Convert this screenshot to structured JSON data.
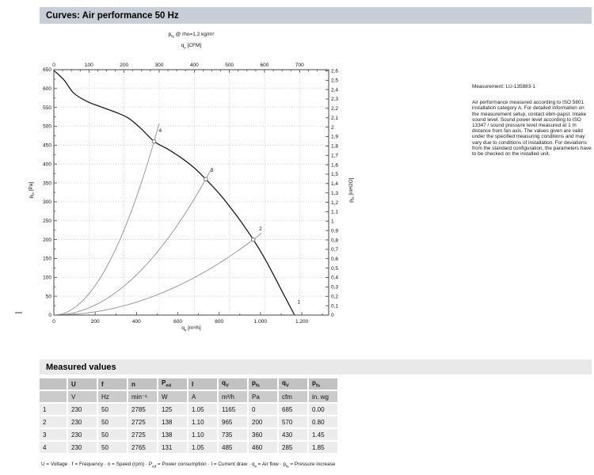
{
  "header": {
    "title": "Curves: Air performance 50 Hz"
  },
  "measured_section": {
    "title": "Measured values"
  },
  "chart_labels": {
    "title": [
      {
        "t": "p"
      },
      {
        "s": "fs"
      },
      {
        "t": " @ rho=1,2 kg/m³"
      }
    ],
    "x_top": [
      {
        "t": "q"
      },
      {
        "s": "v"
      },
      {
        "t": " [CFM]"
      }
    ],
    "x_bottom": [
      {
        "t": "q"
      },
      {
        "s": "v"
      },
      {
        "t": " [m³/h]"
      }
    ],
    "y_left": [
      {
        "t": "p"
      },
      {
        "s": "fs"
      },
      {
        "t": " [Pa]"
      }
    ],
    "y_right": [
      {
        "t": "p"
      },
      {
        "s": "fs"
      },
      {
        "t": " [inH2O]"
      }
    ]
  },
  "chart_data": {
    "type": "line",
    "title": "pfs @ rho=1,2 kg/m3",
    "x_bottom": {
      "label": "qv [m3/h]",
      "range": [
        0,
        1330
      ],
      "majors": [
        0,
        200,
        400,
        600,
        800,
        1000,
        1200
      ],
      "labels": [
        "0",
        "200",
        "400",
        "600",
        "800",
        "1.000",
        "1.200"
      ],
      "minor_step": 100
    },
    "x_top": {
      "label": "qv [CFM]",
      "m3h_per_unit": 1.699,
      "max": 780,
      "majors": [
        0,
        100,
        200,
        300,
        400,
        500,
        600,
        700
      ],
      "labels": [
        "0",
        "100",
        "200",
        "300",
        "400",
        "500",
        "600",
        "700"
      ],
      "minor_step": 25
    },
    "y_left": {
      "label": "pfs [Pa]",
      "range": [
        0,
        650
      ],
      "major_step": 50,
      "minor_step": 25,
      "labels": [
        "0",
        "50",
        "100",
        "150",
        "200",
        "250",
        "300",
        "350",
        "400",
        "450",
        "500",
        "550",
        "600",
        "650"
      ]
    },
    "y_right": {
      "label": "pfs [inH2O]",
      "pa_per_unit": 248.84,
      "tick_step": 0.1,
      "labels": [
        "0",
        "0,1",
        "0,2",
        "0,3",
        "0,4",
        "0,5",
        "0,6",
        "0,7",
        "0,8",
        "0,9",
        "1",
        "1,1",
        "1,2",
        "1,3",
        "1,4",
        "1,5",
        "1,6",
        "1,7",
        "1,8",
        "1,9",
        "2",
        "2,1",
        "2,2",
        "2,3",
        "2,4",
        "2,5",
        "2,6"
      ]
    },
    "grid": {
      "h_step_pa": 50,
      "vertical_at_top_majors": true
    },
    "fan_curve": {
      "name": "Air performance 50 Hz",
      "points_qv_pfs": [
        [
          0,
          648
        ],
        [
          50,
          622
        ],
        [
          96,
          588
        ],
        [
          160,
          566
        ],
        [
          230,
          551
        ],
        [
          300,
          537
        ],
        [
          360,
          522
        ],
        [
          420,
          495
        ],
        [
          485,
          460
        ],
        [
          550,
          440
        ],
        [
          610,
          419
        ],
        [
          675,
          392
        ],
        [
          735,
          360
        ],
        [
          800,
          322
        ],
        [
          840,
          295
        ],
        [
          900,
          252
        ],
        [
          965,
          200
        ],
        [
          1010,
          160
        ],
        [
          1060,
          110
        ],
        [
          1110,
          57
        ],
        [
          1165,
          0
        ]
      ]
    },
    "operating_points": [
      {
        "n": "1",
        "qv": 1165,
        "pfs": 0,
        "marker": false,
        "label_qv": 1178,
        "label_pfs": 30,
        "ext": 0
      },
      {
        "n": "2",
        "qv": 965,
        "pfs": 200,
        "marker": true,
        "label_qv": 993,
        "label_pfs": 224,
        "ext": 1.04
      },
      {
        "n": "3",
        "qv": 735,
        "pfs": 360,
        "marker": true,
        "label_qv": 758,
        "label_pfs": 380,
        "ext": 1.04
      },
      {
        "n": "4",
        "qv": 485,
        "pfs": 460,
        "marker": true,
        "label_qv": 508,
        "label_pfs": 484,
        "ext": 1.05
      }
    ]
  },
  "notes": {
    "measurement": "Measurement: LU-135883-1",
    "body": "Air performance measured according to ISO 5801 installation category A. For detailed information on the measurement setup, contact ebm-papst. Intake sound level. Sound power level according to ISO 13347 / sound pressure level measured at 1 m distance from fan axis. The values given are valid under the specified measuring conditions and may vary due to conditions of installation. For deviations from the standard configuration, the parameters have to be checked on the installed unit."
  },
  "table": {
    "columns": [
      [
        {
          "t": ""
        }
      ],
      [
        {
          "t": "U"
        }
      ],
      [
        {
          "t": "f"
        }
      ],
      [
        {
          "t": "n"
        }
      ],
      [
        {
          "t": "P"
        },
        {
          "s": "ed"
        }
      ],
      [
        {
          "t": "I"
        }
      ],
      [
        {
          "t": "q"
        },
        {
          "s": "V"
        }
      ],
      [
        {
          "t": "p"
        },
        {
          "s": "fs"
        }
      ],
      [
        {
          "t": "q"
        },
        {
          "s": "V"
        }
      ],
      [
        {
          "t": "p"
        },
        {
          "s": "fs"
        }
      ]
    ],
    "units": [
      "",
      "V",
      "Hz",
      "min⁻¹",
      "W",
      "A",
      "m³/h",
      "Pa",
      "cfm",
      "in. wg"
    ],
    "rows": [
      [
        "1",
        "230",
        "50",
        "2785",
        "125",
        "1.05",
        "1165",
        "0",
        "685",
        "0.00"
      ],
      [
        "2",
        "230",
        "50",
        "2725",
        "138",
        "1.10",
        "965",
        "200",
        "570",
        "0.80"
      ],
      [
        "3",
        "230",
        "50",
        "2725",
        "138",
        "1.10",
        "735",
        "360",
        "430",
        "1.45"
      ],
      [
        "4",
        "230",
        "50",
        "2765",
        "131",
        "1.05",
        "485",
        "460",
        "285",
        "1.85"
      ]
    ],
    "footnote": [
      {
        "t": "U = Voltage · f = Frequency · n = Speed (rpm) · P"
      },
      {
        "s": "ed"
      },
      {
        "t": " = Power consumption · I = Current draw · q"
      },
      {
        "s": "v"
      },
      {
        "t": " = Air flow · p"
      },
      {
        "s": "fs"
      },
      {
        "t": " = Pressure increase"
      }
    ]
  },
  "colors": {
    "curves_bar_bg": "#c7ced5",
    "measured_bar_bg": "#e9e9e9",
    "table_header_bg": "#c2c2c2",
    "table_units_bg": "#cbcbcb",
    "table_row_bg": "#ececec",
    "fan_curve": "#1a1a1a",
    "system_curve": "#999999",
    "grid": "#c4c4c4",
    "axis_frame": "#444444"
  }
}
